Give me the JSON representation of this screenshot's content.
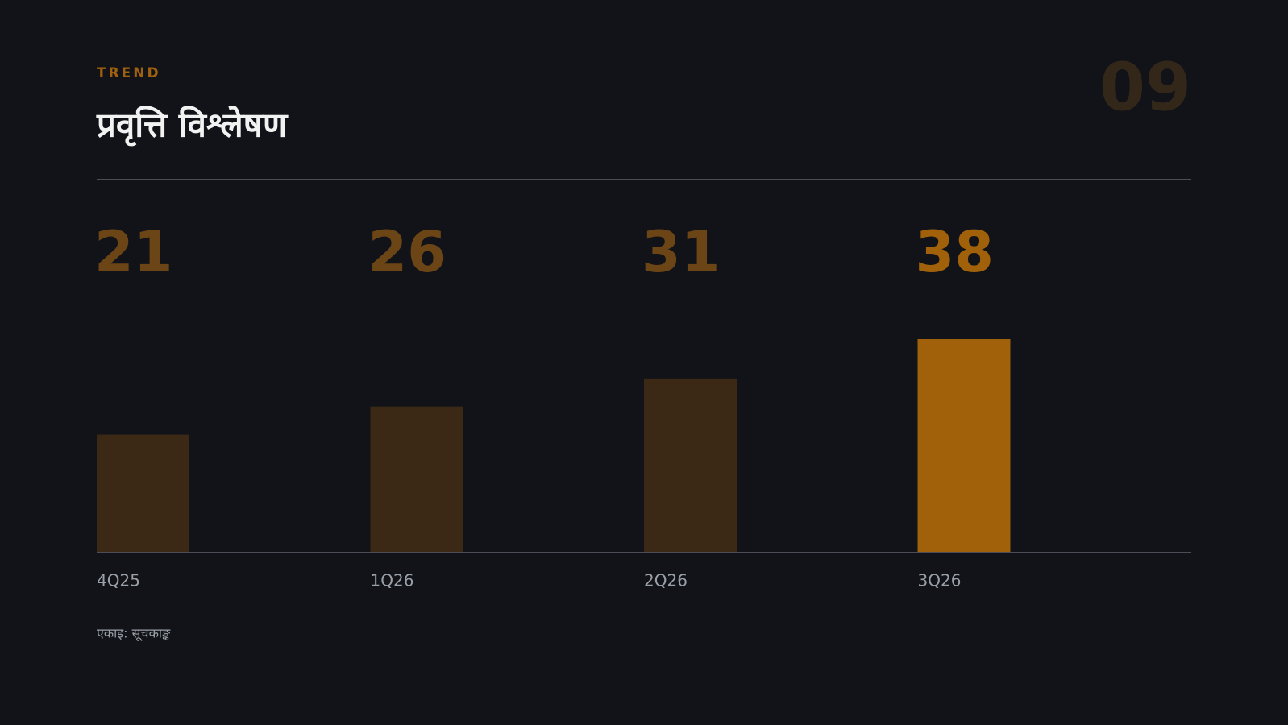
{
  "header": {
    "kicker": "TREND",
    "title": "प्रवृत्ति विश्लेषण",
    "page_number": "09"
  },
  "chart_data": {
    "type": "bar",
    "categories": [
      "4Q25",
      "1Q26",
      "2Q26",
      "3Q26"
    ],
    "values": [
      21,
      26,
      31,
      38
    ],
    "colors": [
      "#3b2915",
      "#3b2915",
      "#3b2915",
      "#a0610a"
    ],
    "value_label_colors": [
      "#6b4515",
      "#6b4515",
      "#6b4515",
      "#a0610a"
    ]
  },
  "footnote": "एकाइ: सूचकाङ्क"
}
